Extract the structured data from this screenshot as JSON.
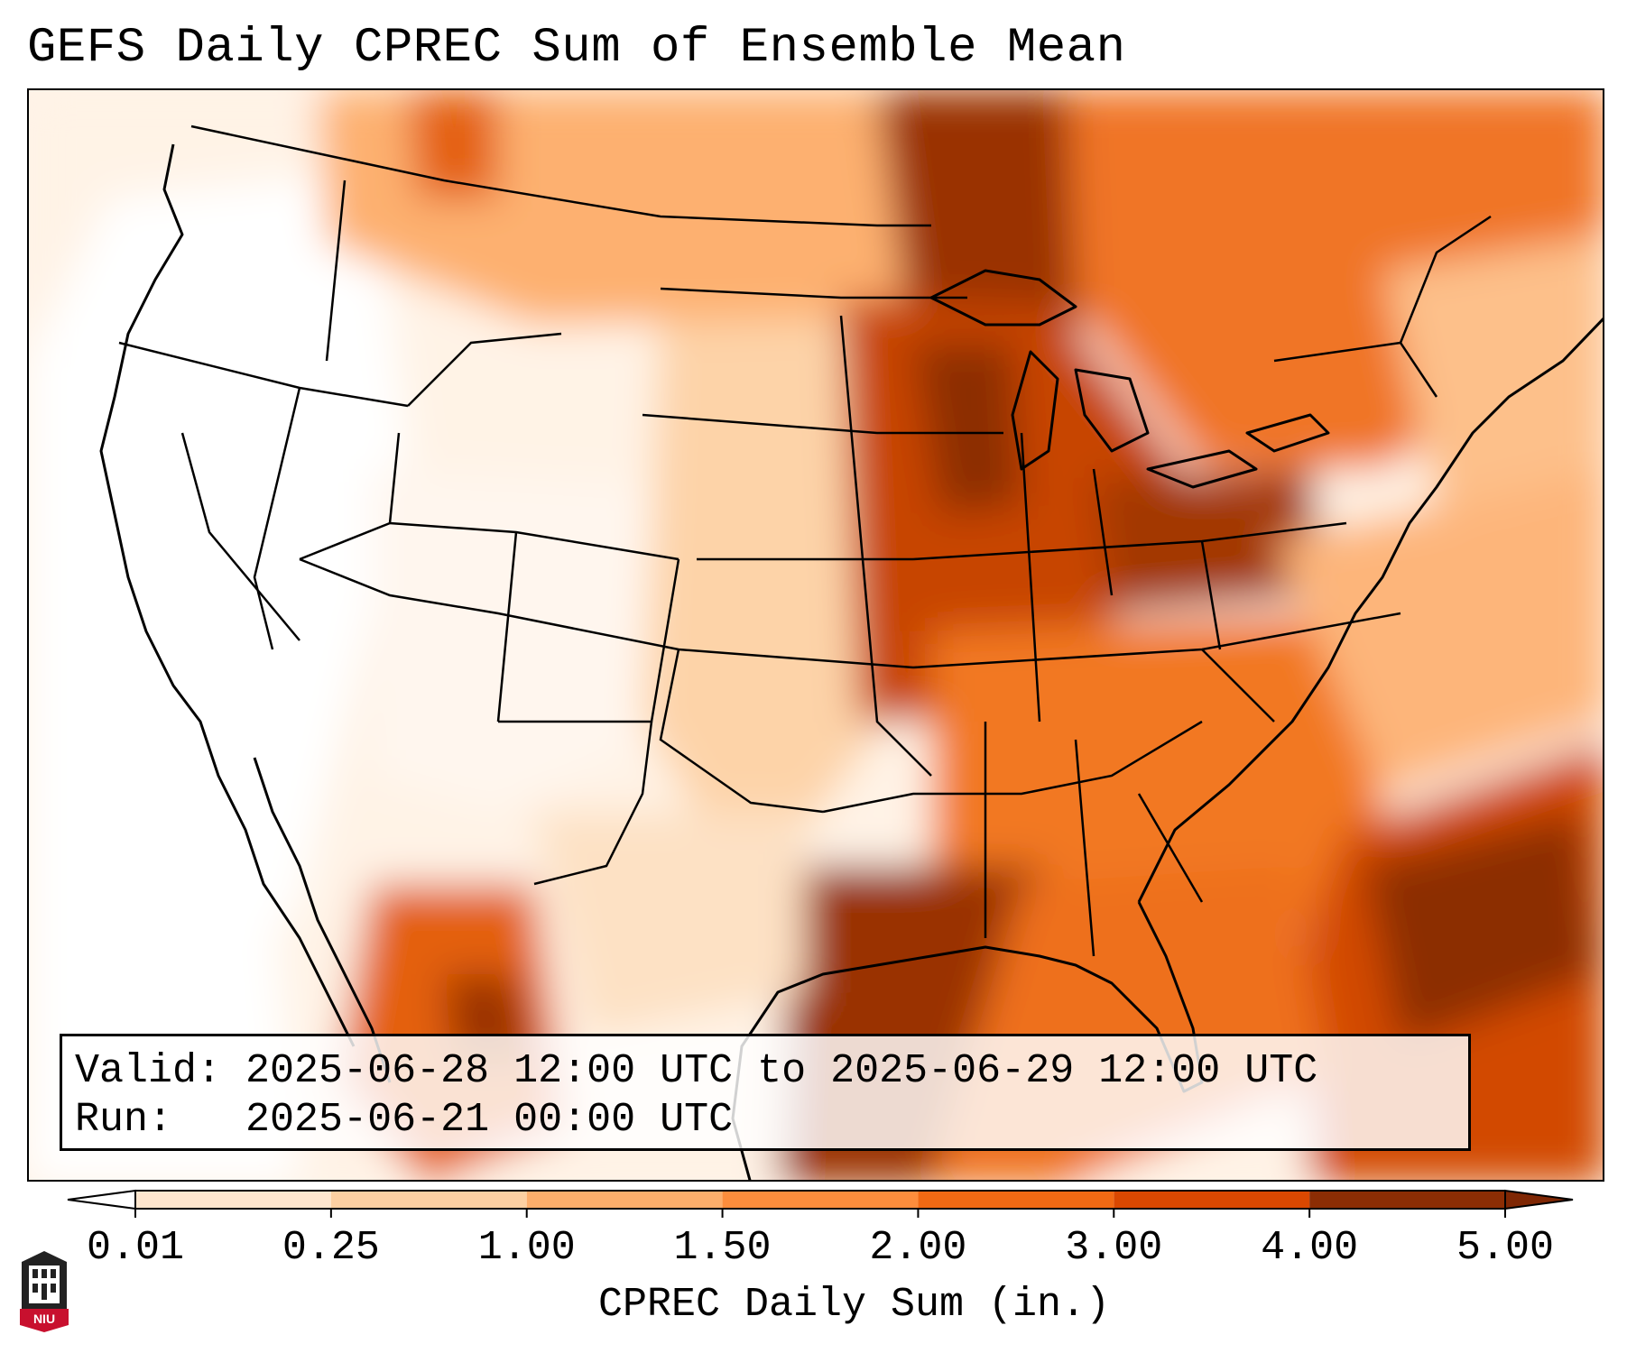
{
  "title": "GEFS Daily CPREC Sum of Ensemble Mean",
  "info": {
    "valid_label": "Valid:",
    "valid_value": "2025-06-28 12:00 UTC to 2025-06-29 12:00 UTC",
    "run_label": "Run:",
    "run_value": "2025-06-21 00:00 UTC"
  },
  "colorbar": {
    "label": "CPREC Daily Sum (in.)",
    "ticks": [
      "0.01",
      "0.25",
      "1.00",
      "1.50",
      "2.00",
      "3.00",
      "4.00",
      "5.00"
    ],
    "colors": [
      "#fff5eb",
      "#fee6ce",
      "#fdd0a2",
      "#fdae6b",
      "#fd8d3c",
      "#f16913",
      "#d94801",
      "#8c2d04"
    ],
    "under_color": "#ffffff",
    "over_color": "#7f2704"
  },
  "logo": {
    "text": "NIU",
    "colors": {
      "red": "#c8102e",
      "dark": "#222222"
    }
  },
  "map": {
    "projection": "Lambert conformal (CONUS)",
    "max_color": "#8c2d04"
  }
}
